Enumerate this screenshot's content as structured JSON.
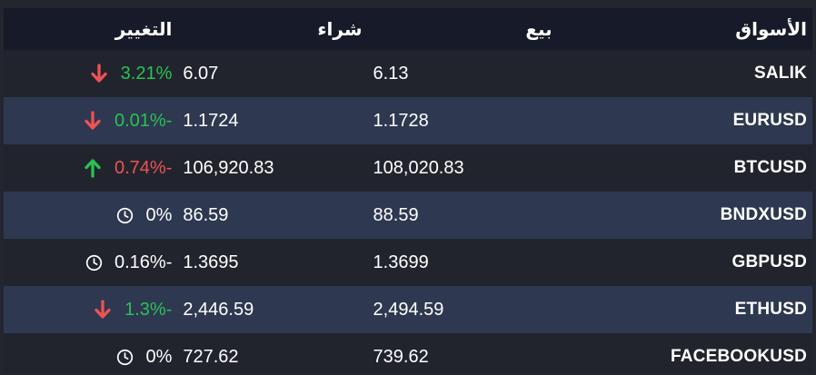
{
  "colors": {
    "positive": "#2bc153",
    "negative": "#ee5253",
    "neutral": "#ffffff",
    "header_bg": "#171a28",
    "row_bg": "#21242d",
    "row_alt_bg": "#2e3850"
  },
  "table": {
    "headers": {
      "markets": "الأسواق",
      "sell": "بيع",
      "buy": "شراء",
      "change": "التغيير"
    },
    "rows": [
      {
        "symbol": "SALIK",
        "sell": "6.13",
        "buy": "6.07",
        "change": "3.21%",
        "change_icon": "arrow-down",
        "change_state": "positive"
      },
      {
        "symbol": "EURUSD",
        "sell": "1.1728",
        "buy": "1.1724",
        "change": "0.01%-",
        "change_icon": "arrow-down",
        "change_state": "positive"
      },
      {
        "symbol": "BTCUSD",
        "sell": "108,020.83",
        "buy": "106,920.83",
        "change": "0.74%-",
        "change_icon": "arrow-up",
        "change_state": "negative"
      },
      {
        "symbol": "BNDXUSD",
        "sell": "88.59",
        "buy": "86.59",
        "change": "0%",
        "change_icon": "clock",
        "change_state": "neutral"
      },
      {
        "symbol": "GBPUSD",
        "sell": "1.3699",
        "buy": "1.3695",
        "change": "0.16%-",
        "change_icon": "clock",
        "change_state": "neutral"
      },
      {
        "symbol": "ETHUSD",
        "sell": "2,494.59",
        "buy": "2,446.59",
        "change": "1.3%-",
        "change_icon": "arrow-down",
        "change_state": "positive"
      },
      {
        "symbol": "FACEBOOKUSD",
        "sell": "739.62",
        "buy": "727.62",
        "change": "0%",
        "change_icon": "clock",
        "change_state": "neutral"
      }
    ]
  }
}
